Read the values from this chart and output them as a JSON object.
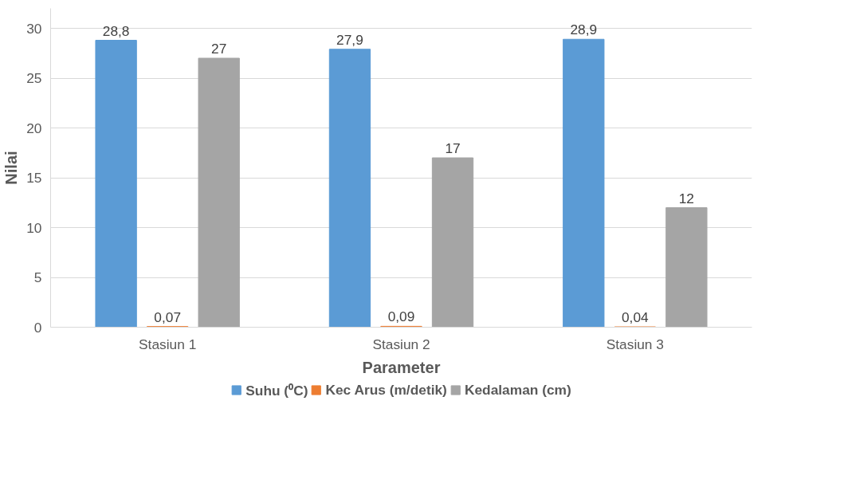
{
  "chart_data": {
    "type": "bar",
    "xlabel": "Parameter",
    "ylabel": "Nilai",
    "categories": [
      "Stasiun 1",
      "Stasiun 2",
      "Stasiun 3"
    ],
    "series": [
      {
        "name": "Suhu (⁰C)",
        "color": "#5b9bd5",
        "values": [
          28.8,
          27.9,
          28.9
        ],
        "value_labels": [
          "28,8",
          "27,9",
          "28,9"
        ]
      },
      {
        "name": "Kec Arus (m/detik)",
        "color": "#ed7d31",
        "values": [
          0.07,
          0.09,
          0.04
        ],
        "value_labels": [
          "0,07",
          "0,09",
          "0,04"
        ]
      },
      {
        "name": "Kedalaman (cm)",
        "color": "#a5a5a5",
        "values": [
          27,
          17,
          12
        ],
        "value_labels": [
          "27",
          "17",
          "12"
        ]
      }
    ],
    "ylim": [
      0,
      32
    ],
    "yticks": [
      0,
      5,
      10,
      15,
      20,
      25,
      30
    ],
    "grid": "y",
    "legend": "bottom"
  }
}
